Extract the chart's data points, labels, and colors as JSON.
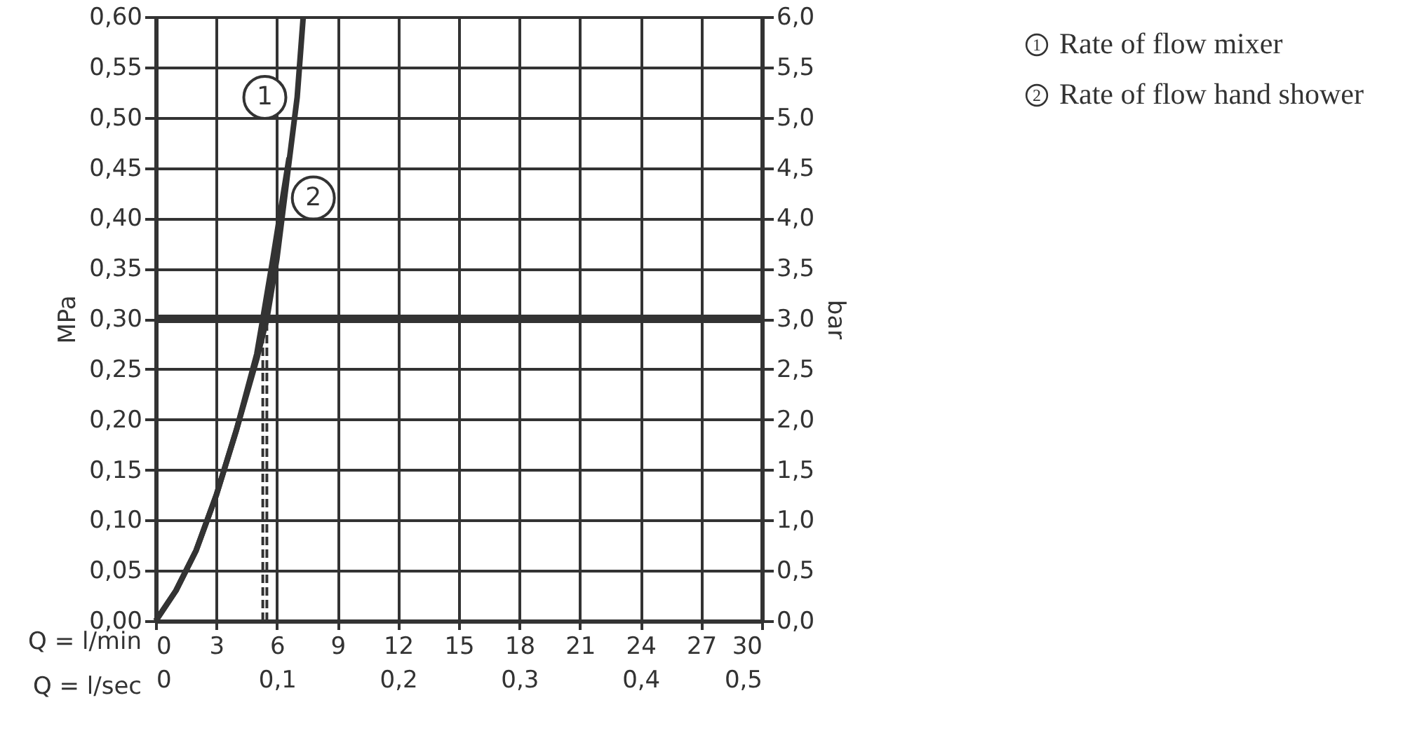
{
  "chart_data": {
    "type": "line",
    "xlabel": "Q = l/min",
    "x2label": "Q = l/sec",
    "ylabel": "MPa",
    "y2label": "bar",
    "xlim": [
      0,
      30
    ],
    "xticks": [
      0,
      3,
      6,
      9,
      12,
      15,
      18,
      21,
      24,
      27,
      30
    ],
    "x2lim": [
      0,
      0.5
    ],
    "x2ticks": [
      {
        "value": 0,
        "label": "0"
      },
      {
        "value": 0.1,
        "label": "0,1"
      },
      {
        "value": 0.2,
        "label": "0,2"
      },
      {
        "value": 0.3,
        "label": "0,3"
      },
      {
        "value": 0.4,
        "label": "0,4"
      },
      {
        "value": 0.5,
        "label": "0,5"
      }
    ],
    "ylim": [
      0,
      0.6
    ],
    "yticks": [
      {
        "value": 0,
        "label": "0,00"
      },
      {
        "value": 0.05,
        "label": "0,05"
      },
      {
        "value": 0.1,
        "label": "0,10"
      },
      {
        "value": 0.15,
        "label": "0,15"
      },
      {
        "value": 0.2,
        "label": "0,20"
      },
      {
        "value": 0.25,
        "label": "0,25"
      },
      {
        "value": 0.3,
        "label": "0,30"
      },
      {
        "value": 0.35,
        "label": "0,35"
      },
      {
        "value": 0.4,
        "label": "0,40"
      },
      {
        "value": 0.45,
        "label": "0,45"
      },
      {
        "value": 0.5,
        "label": "0,50"
      },
      {
        "value": 0.55,
        "label": "0,55"
      },
      {
        "value": 0.6,
        "label": "0,60"
      }
    ],
    "y2lim": [
      0,
      6
    ],
    "y2ticks": [
      {
        "value": 0,
        "label": "0,0"
      },
      {
        "value": 0.5,
        "label": "0,5"
      },
      {
        "value": 1,
        "label": "1,0"
      },
      {
        "value": 1.5,
        "label": "1,5"
      },
      {
        "value": 2,
        "label": "2,0"
      },
      {
        "value": 2.5,
        "label": "2,5"
      },
      {
        "value": 3,
        "label": "3,0"
      },
      {
        "value": 3.5,
        "label": "3,5"
      },
      {
        "value": 4,
        "label": "4,0"
      },
      {
        "value": 4.5,
        "label": "4,5"
      },
      {
        "value": 5,
        "label": "5,0"
      },
      {
        "value": 5.5,
        "label": "5,5"
      },
      {
        "value": 6,
        "label": "6,0"
      }
    ],
    "x": [
      0,
      1,
      2,
      3,
      4,
      5,
      5.5,
      6,
      6.5,
      7,
      7.3
    ],
    "series": [
      {
        "name": "Rate of flow mixer",
        "color": "#333333",
        "values": [
          0,
          0.03,
          0.07,
          0.125,
          0.19,
          0.26,
          0.3,
          0.36,
          0.44,
          0.52,
          0.6
        ]
      },
      {
        "name": "Rate of flow hand shower",
        "color": "#333333",
        "x": [
          0,
          1,
          2,
          3,
          4,
          5,
          5.3,
          5.8,
          6.2,
          6.6
        ],
        "values": [
          0,
          0.03,
          0.07,
          0.125,
          0.19,
          0.265,
          0.3,
          0.36,
          0.41,
          0.46
        ]
      }
    ],
    "ref_lines": [
      {
        "axis": "y",
        "value": 0.3,
        "color": "#333333",
        "line_style": "solid"
      },
      {
        "axis": "x",
        "value": 5.3,
        "color": "#333333",
        "line_style": "dashed"
      },
      {
        "axis": "x",
        "value": 5.5,
        "color": "#333333",
        "line_style": "dashed"
      }
    ],
    "annotations": [
      {
        "text": "1",
        "x": 5.4,
        "y": 0.52
      },
      {
        "text": "2",
        "x": 7.8,
        "y": 0.42
      }
    ],
    "grid": true,
    "legend": "top right"
  }
}
